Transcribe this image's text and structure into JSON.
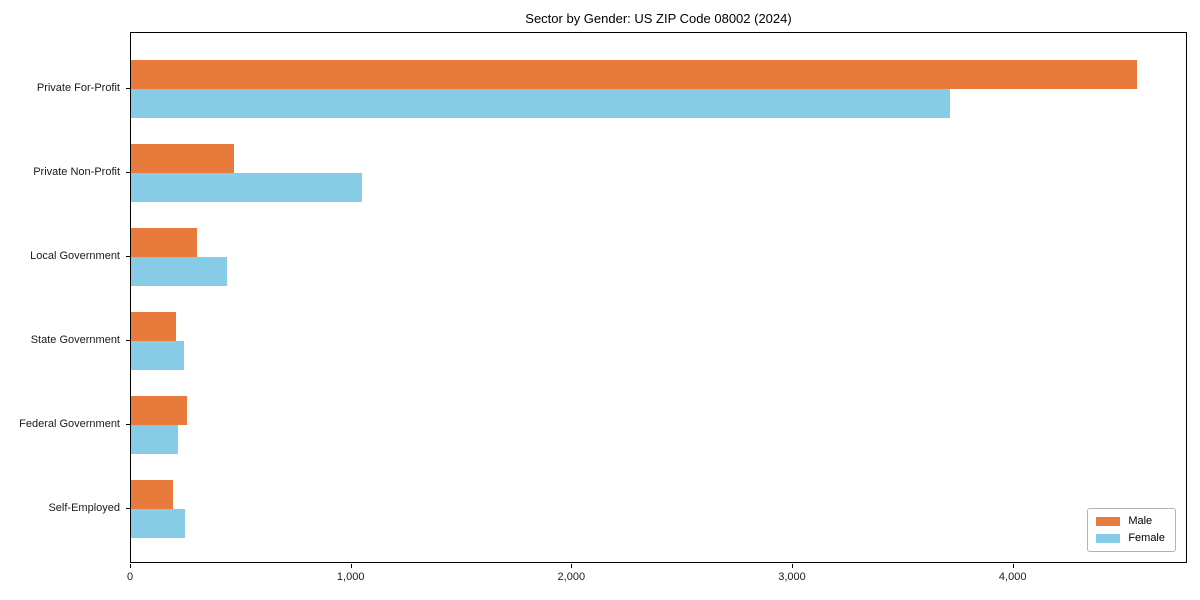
{
  "chart_data": {
    "type": "bar",
    "orientation": "horizontal",
    "title": "Sector by Gender: US ZIP Code 08002 (2024)",
    "xlabel": "",
    "ylabel": "",
    "categories": [
      "Private For-Profit",
      "Private Non-Profit",
      "Local Government",
      "State Government",
      "Federal Government",
      "Self-Employed"
    ],
    "series": [
      {
        "name": "Male",
        "color": "#e87a3c",
        "values": [
          4560,
          465,
          300,
          205,
          255,
          190
        ]
      },
      {
        "name": "Female",
        "color": "#87cce6",
        "values": [
          3710,
          1045,
          435,
          240,
          215,
          245
        ]
      }
    ],
    "xlim": [
      0,
      4790
    ],
    "x_ticks": [
      0,
      1000,
      2000,
      3000,
      4000
    ],
    "x_tick_labels": [
      "0",
      "1,000",
      "2,000",
      "3,000",
      "4,000"
    ],
    "grid": false,
    "legend_position": "lower right",
    "colors": {
      "male": "#e87a3c",
      "female": "#87cce6",
      "axis": "#000000",
      "background": "#ffffff"
    }
  }
}
